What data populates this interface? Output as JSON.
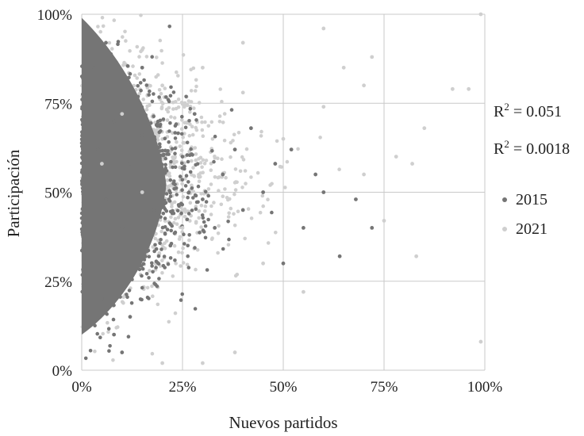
{
  "chart_data": {
    "type": "scatter",
    "xlabel": "Nuevos partidos",
    "ylabel": "Participación",
    "xlim": [
      0,
      1
    ],
    "ylim": [
      0,
      1
    ],
    "x_ticks": [
      "0%",
      "25%",
      "50%",
      "75%",
      "100%"
    ],
    "y_ticks": [
      "0%",
      "25%",
      "50%",
      "75%",
      "100%"
    ],
    "grid": true,
    "legend_position": "right",
    "annotations": [
      {
        "base": "R",
        "sup": "2",
        "rest": " = 0.051"
      },
      {
        "base": "R",
        "sup": "2",
        "rest": " = 0.0018"
      }
    ],
    "series": [
      {
        "name": "2015",
        "color": "#757575",
        "points": [
          [
            0.02,
            0.55
          ],
          [
            0.04,
            0.62
          ],
          [
            0.06,
            0.48
          ],
          [
            0.08,
            0.7
          ],
          [
            0.1,
            0.4
          ],
          [
            0.12,
            0.58
          ],
          [
            0.15,
            0.66
          ],
          [
            0.18,
            0.45
          ],
          [
            0.2,
            0.52
          ],
          [
            0.22,
            0.35
          ],
          [
            0.25,
            0.6
          ],
          [
            0.28,
            0.72
          ],
          [
            0.3,
            0.48
          ],
          [
            0.33,
            0.4
          ],
          [
            0.35,
            0.55
          ],
          [
            0.38,
            0.62
          ],
          [
            0.4,
            0.45
          ],
          [
            0.42,
            0.68
          ],
          [
            0.45,
            0.5
          ],
          [
            0.48,
            0.58
          ],
          [
            0.5,
            0.3
          ],
          [
            0.52,
            0.62
          ],
          [
            0.55,
            0.4
          ],
          [
            0.58,
            0.55
          ],
          [
            0.6,
            0.5
          ],
          [
            0.64,
            0.32
          ],
          [
            0.68,
            0.48
          ],
          [
            0.72,
            0.4
          ],
          [
            0.05,
            0.2
          ],
          [
            0.08,
            0.1
          ],
          [
            0.1,
            0.05
          ],
          [
            0.12,
            0.15
          ],
          [
            0.03,
            0.85
          ],
          [
            0.06,
            0.92
          ],
          [
            0.15,
            0.85
          ]
        ]
      },
      {
        "name": "2021",
        "color": "#cfcfcf",
        "points": [
          [
            0.05,
            0.58
          ],
          [
            0.1,
            0.72
          ],
          [
            0.15,
            0.5
          ],
          [
            0.2,
            0.8
          ],
          [
            0.25,
            0.4
          ],
          [
            0.3,
            0.85
          ],
          [
            0.35,
            0.55
          ],
          [
            0.4,
            0.78
          ],
          [
            0.45,
            0.3
          ],
          [
            0.5,
            0.65
          ],
          [
            0.55,
            0.22
          ],
          [
            0.6,
            0.74
          ],
          [
            0.65,
            0.85
          ],
          [
            0.7,
            0.55
          ],
          [
            0.72,
            0.88
          ],
          [
            0.75,
            0.42
          ],
          [
            0.78,
            0.6
          ],
          [
            0.82,
            0.58
          ],
          [
            0.83,
            0.32
          ],
          [
            0.85,
            0.68
          ],
          [
            0.92,
            0.79
          ],
          [
            0.96,
            0.79
          ],
          [
            0.99,
            0.08
          ],
          [
            0.99,
            1.0
          ],
          [
            0.38,
            0.05
          ],
          [
            0.3,
            0.02
          ],
          [
            0.2,
            0.02
          ],
          [
            0.15,
            0.9
          ],
          [
            0.4,
            0.92
          ],
          [
            0.6,
            0.96
          ],
          [
            0.7,
            0.8
          ]
        ]
      }
    ]
  }
}
